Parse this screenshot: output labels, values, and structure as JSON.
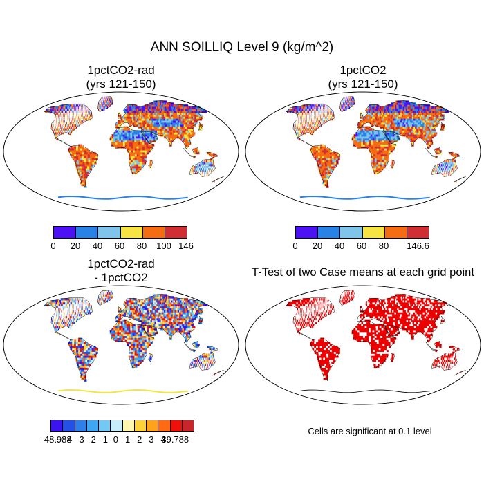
{
  "main_title": "ANN SOILLIQ Level 9 (kg/m^2)",
  "panels": [
    {
      "id": "a",
      "title_line1": "1pctCO2-rad",
      "title_line2": "(yrs 121-150)",
      "kind": "field"
    },
    {
      "id": "b",
      "title_line1": "1pctCO2",
      "title_line2": "(yrs 121-150)",
      "kind": "field"
    },
    {
      "id": "c",
      "title_line1": "1pctCO2-rad",
      "title_line2": "- 1pctCO2",
      "kind": "diff"
    },
    {
      "id": "d",
      "title_line1": "T-Test of two Case means at each grid point",
      "title_line2": "",
      "kind": "ttest"
    }
  ],
  "colorbars": {
    "a": {
      "colors": [
        "#4b12f4",
        "#2a82e6",
        "#7fc4ea",
        "#f5e444",
        "#f56c12",
        "#cf2f33"
      ],
      "labels": [
        "0",
        "20",
        "40",
        "60",
        "80",
        "100",
        "146"
      ]
    },
    "b": {
      "colors": [
        "#4b12f4",
        "#2a82e6",
        "#7fc4ea",
        "#f5e444",
        "#f56c12",
        "#cf2f33"
      ],
      "labels": [
        "0",
        "20",
        "40",
        "60",
        "80",
        "",
        "146.6"
      ]
    },
    "c": {
      "colors": [
        "#3c14f0",
        "#2450e6",
        "#2f7fea",
        "#3fa6f2",
        "#74c8f4",
        "#c7ecfa",
        "#fff6b0",
        "#ffd23a",
        "#ffa21c",
        "#ff6a12",
        "#f0100a",
        "#c8262c"
      ],
      "labels": [
        "-48.988",
        "-4",
        "-3",
        "-2",
        "-1",
        "0",
        "1",
        "2",
        "3",
        "4",
        "39.788"
      ]
    }
  },
  "significance_note": "Cells are significant at 0.1 level",
  "colors": {
    "ocean": "#ffffff",
    "coast": "#000000",
    "significant": "#ee0000"
  }
}
